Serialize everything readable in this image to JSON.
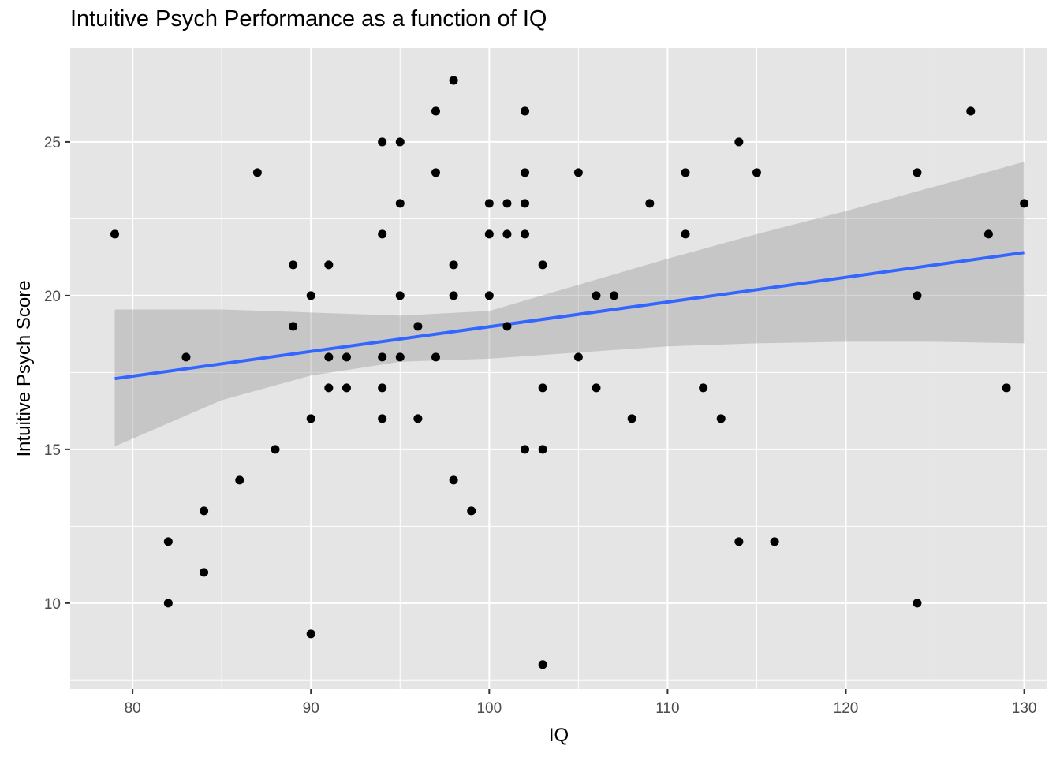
{
  "chart_data": {
    "type": "scatter",
    "title": "Intuitive Psych Performance as a function of IQ",
    "xlabel": "IQ",
    "ylabel": "Intuitive Psych Score",
    "xlim": [
      76.5,
      131.3
    ],
    "ylim": [
      7.2,
      28.05
    ],
    "x_ticks": [
      80,
      90,
      100,
      110,
      120,
      130
    ],
    "y_ticks": [
      10,
      15,
      20,
      25
    ],
    "grid": true,
    "legend": "none",
    "colors": {
      "panel_background": "#e5e5e5",
      "grid": "#ffffff",
      "points": "#000000",
      "fit_line": "#3366ff",
      "confidence_band": "#999999"
    },
    "points": [
      {
        "x": 79,
        "y": 22
      },
      {
        "x": 82,
        "y": 12
      },
      {
        "x": 82,
        "y": 10
      },
      {
        "x": 83,
        "y": 18
      },
      {
        "x": 84,
        "y": 13
      },
      {
        "x": 84,
        "y": 11
      },
      {
        "x": 86,
        "y": 14
      },
      {
        "x": 87,
        "y": 24
      },
      {
        "x": 88,
        "y": 15
      },
      {
        "x": 89,
        "y": 21
      },
      {
        "x": 89,
        "y": 19
      },
      {
        "x": 90,
        "y": 20
      },
      {
        "x": 90,
        "y": 16
      },
      {
        "x": 90,
        "y": 9
      },
      {
        "x": 91,
        "y": 21
      },
      {
        "x": 91,
        "y": 18
      },
      {
        "x": 91,
        "y": 17
      },
      {
        "x": 92,
        "y": 18
      },
      {
        "x": 92,
        "y": 17
      },
      {
        "x": 94,
        "y": 25
      },
      {
        "x": 94,
        "y": 22
      },
      {
        "x": 94,
        "y": 18
      },
      {
        "x": 94,
        "y": 17
      },
      {
        "x": 94,
        "y": 16
      },
      {
        "x": 95,
        "y": 25
      },
      {
        "x": 95,
        "y": 23
      },
      {
        "x": 95,
        "y": 20
      },
      {
        "x": 95,
        "y": 18
      },
      {
        "x": 96,
        "y": 19
      },
      {
        "x": 96,
        "y": 16
      },
      {
        "x": 97,
        "y": 26
      },
      {
        "x": 97,
        "y": 24
      },
      {
        "x": 97,
        "y": 18
      },
      {
        "x": 98,
        "y": 27
      },
      {
        "x": 98,
        "y": 21
      },
      {
        "x": 98,
        "y": 20
      },
      {
        "x": 98,
        "y": 14
      },
      {
        "x": 99,
        "y": 13
      },
      {
        "x": 100,
        "y": 23
      },
      {
        "x": 100,
        "y": 22
      },
      {
        "x": 100,
        "y": 20
      },
      {
        "x": 101,
        "y": 23
      },
      {
        "x": 101,
        "y": 22
      },
      {
        "x": 101,
        "y": 19
      },
      {
        "x": 102,
        "y": 26
      },
      {
        "x": 102,
        "y": 24
      },
      {
        "x": 102,
        "y": 23
      },
      {
        "x": 102,
        "y": 22
      },
      {
        "x": 102,
        "y": 15
      },
      {
        "x": 103,
        "y": 21
      },
      {
        "x": 103,
        "y": 17
      },
      {
        "x": 103,
        "y": 15
      },
      {
        "x": 103,
        "y": 8
      },
      {
        "x": 105,
        "y": 24
      },
      {
        "x": 105,
        "y": 18
      },
      {
        "x": 106,
        "y": 20
      },
      {
        "x": 106,
        "y": 17
      },
      {
        "x": 107,
        "y": 20
      },
      {
        "x": 108,
        "y": 16
      },
      {
        "x": 109,
        "y": 23
      },
      {
        "x": 111,
        "y": 24
      },
      {
        "x": 111,
        "y": 22
      },
      {
        "x": 112,
        "y": 17
      },
      {
        "x": 113,
        "y": 16
      },
      {
        "x": 114,
        "y": 25
      },
      {
        "x": 114,
        "y": 12
      },
      {
        "x": 115,
        "y": 24
      },
      {
        "x": 116,
        "y": 12
      },
      {
        "x": 124,
        "y": 24
      },
      {
        "x": 124,
        "y": 20
      },
      {
        "x": 124,
        "y": 10
      },
      {
        "x": 127,
        "y": 26
      },
      {
        "x": 128,
        "y": 22
      },
      {
        "x": 129,
        "y": 17
      },
      {
        "x": 130,
        "y": 23
      }
    ],
    "fit_line": {
      "x": [
        79,
        130
      ],
      "y": [
        17.3,
        21.4
      ]
    },
    "confidence_band": {
      "x": [
        79,
        85,
        90,
        95,
        100,
        105,
        110,
        115,
        120,
        125,
        130
      ],
      "lower": [
        15.1,
        16.6,
        17.4,
        17.85,
        17.95,
        18.15,
        18.35,
        18.45,
        18.5,
        18.5,
        18.45
      ],
      "upper": [
        19.55,
        19.55,
        19.45,
        19.35,
        19.5,
        20.35,
        21.2,
        22.0,
        22.75,
        23.55,
        24.35
      ]
    }
  }
}
